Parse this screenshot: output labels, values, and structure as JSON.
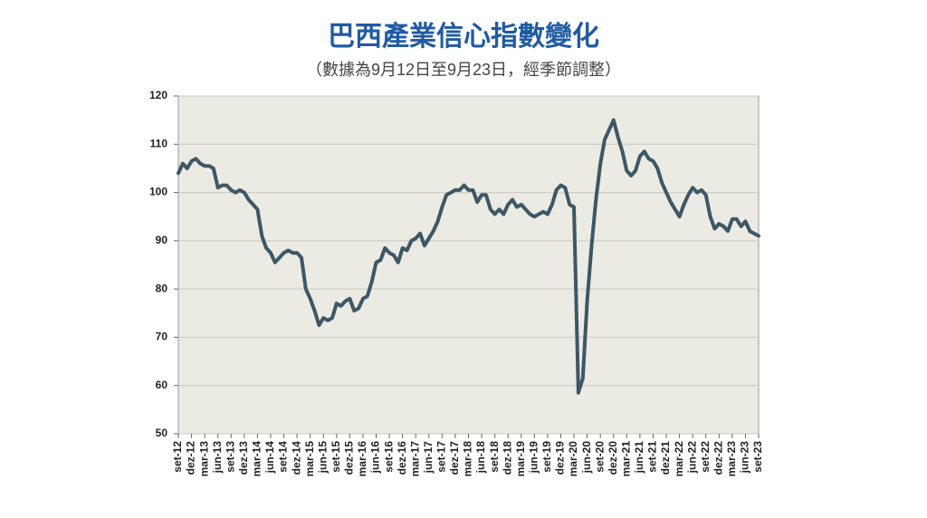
{
  "chart_data": {
    "type": "line",
    "title": "巴西產業信心指數變化",
    "subtitle": "（數據為9月12日至9月23日，經季節調整）",
    "categories": [
      "set-12",
      null,
      null,
      "dez-12",
      null,
      null,
      "mar-13",
      null,
      null,
      "jun-13",
      null,
      null,
      "set-13",
      null,
      null,
      "dez-13",
      null,
      null,
      "mar-14",
      null,
      null,
      "jun-14",
      null,
      null,
      "set-14",
      null,
      null,
      "dez-14",
      null,
      null,
      "mar-15",
      null,
      null,
      "jun-15",
      null,
      null,
      "set-15",
      null,
      null,
      "dez-15",
      null,
      null,
      "mar-16",
      null,
      null,
      "jun-16",
      null,
      null,
      "set-16",
      null,
      null,
      "dez-16",
      null,
      null,
      "mar-17",
      null,
      null,
      "jun-17",
      null,
      null,
      "set-17",
      null,
      null,
      "dez-17",
      null,
      null,
      "mar-18",
      null,
      null,
      "jun-18",
      null,
      null,
      "set-18",
      null,
      null,
      "dez-18",
      null,
      null,
      "mar-19",
      null,
      null,
      "jun-19",
      null,
      null,
      "set-19",
      null,
      null,
      "dez-19",
      null,
      null,
      "mar-20",
      null,
      null,
      "jun-20",
      null,
      null,
      "set-20",
      null,
      null,
      "dez-20",
      null,
      null,
      "mar-21",
      null,
      null,
      "jun-21",
      null,
      null,
      "set-21",
      null,
      null,
      "dez-21",
      null,
      null,
      "mar-22",
      null,
      null,
      "jun-22",
      null,
      null,
      "set-22",
      null,
      null,
      "dez-22",
      null,
      null,
      "mar-23",
      null,
      null,
      "jun-23",
      null,
      null,
      "set-23"
    ],
    "values": [
      104,
      106,
      105,
      106.5,
      107,
      106,
      105.5,
      105.5,
      105,
      101,
      101.5,
      101.5,
      100.5,
      100,
      100.5,
      100,
      98.5,
      97.5,
      96.5,
      91,
      88.5,
      87.5,
      85.5,
      86.5,
      87.5,
      88,
      87.5,
      87.5,
      86.5,
      80,
      78,
      75.5,
      72.5,
      74,
      73.5,
      74,
      77,
      76.5,
      77.5,
      78,
      75.5,
      76,
      78,
      78.5,
      81.5,
      85.5,
      86,
      88.5,
      87.5,
      87,
      85.5,
      88.5,
      88,
      90,
      90.5,
      91.5,
      89,
      90.5,
      92,
      94,
      97,
      99.5,
      100,
      100.5,
      100.5,
      101.5,
      100.5,
      100.5,
      98,
      99.5,
      99.5,
      96.5,
      95.5,
      96.5,
      95.5,
      97.5,
      98.5,
      97,
      97.5,
      96.5,
      95.5,
      95,
      95.5,
      96,
      95.5,
      97.5,
      100.5,
      101.5,
      101,
      97.5,
      97,
      58.5,
      61.5,
      77.5,
      89,
      98.5,
      106,
      111,
      113,
      115,
      111.5,
      108.5,
      104.5,
      103.5,
      104.5,
      107.5,
      108.5,
      107,
      106.5,
      105,
      102,
      100,
      98,
      96.5,
      95,
      97.5,
      99.5,
      101,
      100,
      100.5,
      99.5,
      95,
      92.5,
      93.5,
      93,
      92,
      94.5,
      94.5,
      93,
      94,
      92,
      91.5,
      91
    ],
    "color": "#3d5766",
    "plot_background": "#ebebe3",
    "ylim": [
      50,
      120
    ],
    "yticks": [
      50,
      60,
      70,
      80,
      90,
      100,
      110,
      120
    ],
    "grid": true
  }
}
